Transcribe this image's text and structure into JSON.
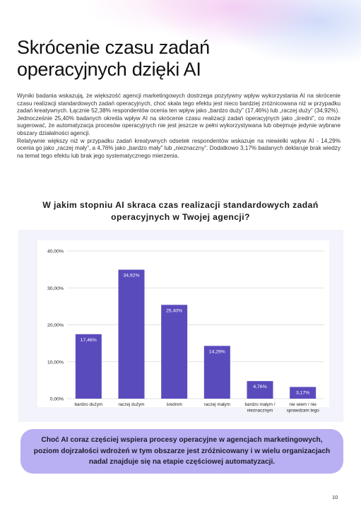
{
  "title": "Skrócenie czasu zadań operacyjnych dzięki AI",
  "paragraphs": [
    "Wyniki badania wskazują, że większość agencji marketingowych dostrzega pozytywny wpływ wykorzystania AI na skrócenie czasu realizacji standardowych zadań operacyjnych, choć skala tego efektu jest nieco bardziej zróżnicowana niż w przypadku zadań kreatywnych. Łącznie 52,38% respondentów ocenia ten wpływ jako „bardzo duży” (17,46%) lub „raczej duży” (34,92%).",
    "Jednocześnie 25,40% badanych określa wpływ AI na skrócenie czasu realizacji zadań operacyjnych jako „średni”, co może sugerować, że automatyzacja procesów operacyjnych nie jest jeszcze w pełni wykorzystywana lub obejmuje jedynie wybrane obszary działalności agencji.",
    "Relatywnie większy niż w przypadku zadań kreatywnych odsetek respondentów wskazuje na niewielki wpływ AI - 14,29% ocenia go jako „raczej mały”, a 4,76% jako „bardzo mały” lub „nieznaczny”. Dodatkowo 3,17% badanych deklaruje brak wiedzy na temat tego efektu lub brak jego systematycznego mierzenia."
  ],
  "chart_title": "W jakim stopniu AI skraca czas realizacji standardowych zadań operacyjnych w Twojej agencji?",
  "chart_data": {
    "type": "bar",
    "title": "W jakim stopniu AI skraca czas realizacji standardowych zadań operacyjnych w Twojej agencji?",
    "categories": [
      [
        "bardzo dużym"
      ],
      [
        "raczej dużym"
      ],
      [
        "średnim"
      ],
      [
        "raczej małym"
      ],
      [
        "bardzo małym /",
        "nieznacznym"
      ],
      [
        "nie wiem / nie",
        "sprawdzam tego"
      ]
    ],
    "values": [
      17.46,
      34.92,
      25.4,
      14.29,
      4.76,
      3.17
    ],
    "value_labels": [
      "17,46%",
      "34,92%",
      "25,40%",
      "14,29%",
      "4,76%",
      "3,17%"
    ],
    "yticks": [
      0,
      10,
      20,
      30,
      40
    ],
    "ytick_labels": [
      "0,00%",
      "10,00%",
      "20,00%",
      "30,00%",
      "40,00%"
    ],
    "ylim": [
      0,
      40
    ],
    "xlabel": "",
    "ylabel": "",
    "grid": true,
    "bar_color": "#5a4bbd",
    "plot_background": "#ffffff",
    "panel_background": "#f3f3fb"
  },
  "callout": "Choć AI coraz częściej wspiera procesy operacyjne w agencjach marketingowych, poziom dojrzałości wdrożeń w tym obszarze jest zróżnicowany i w wielu organizacjach nadal znajduje się na etapie częściowej automatyzacji.",
  "page_number": "10",
  "colors": {
    "callout_bg": "#b8b0f2",
    "bar": "#5a4bbd"
  }
}
